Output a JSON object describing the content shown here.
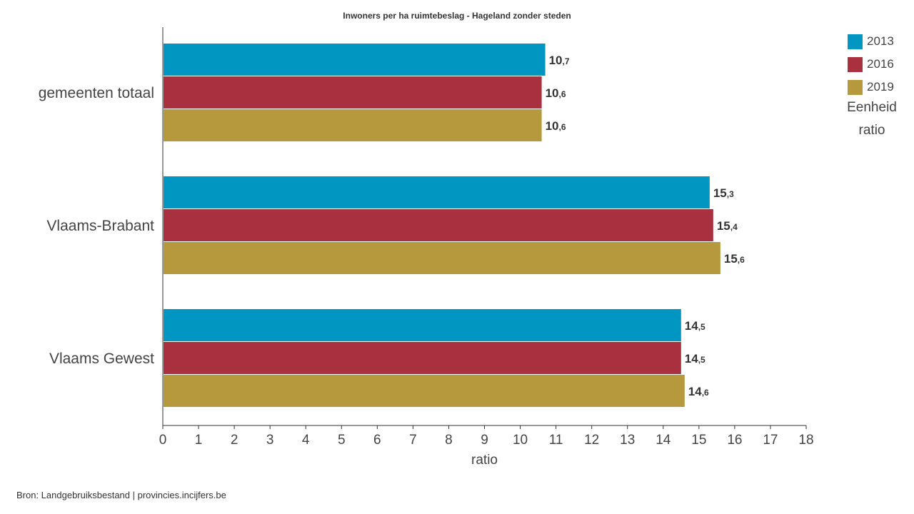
{
  "title": "Inwoners per ha ruimtebeslag - Hageland zonder steden",
  "legend": {
    "items": [
      {
        "label": "2013",
        "color": "#0096c1"
      },
      {
        "label": "2016",
        "color": "#a8303f"
      },
      {
        "label": "2019",
        "color": "#b5993c"
      }
    ],
    "unit_title": "Eenheid",
    "unit_value": "ratio"
  },
  "source": "Bron: Landgebruiksbestand | provincies.incijfers.be",
  "chart_data": {
    "type": "bar",
    "orientation": "horizontal",
    "categories": [
      "gemeenten totaal",
      "Vlaams-Brabant",
      "Vlaams Gewest"
    ],
    "series": [
      {
        "name": "2013",
        "values": [
          10.7,
          15.3,
          14.5
        ],
        "labels": [
          [
            "10",
            ",7"
          ],
          [
            "15",
            ",3"
          ],
          [
            "14",
            ",5"
          ]
        ]
      },
      {
        "name": "2016",
        "values": [
          10.6,
          15.4,
          14.5
        ],
        "labels": [
          [
            "10",
            ",6"
          ],
          [
            "15",
            ",4"
          ],
          [
            "14",
            ",5"
          ]
        ]
      },
      {
        "name": "2019",
        "values": [
          10.6,
          15.6,
          14.6
        ],
        "labels": [
          [
            "10",
            ",6"
          ],
          [
            "15",
            ",6"
          ],
          [
            "14",
            ",6"
          ]
        ]
      }
    ],
    "xlabel": "ratio",
    "ylabel": "",
    "xlim": [
      0,
      18
    ],
    "xticks": [
      "0",
      "1",
      "2",
      "3",
      "4",
      "5",
      "6",
      "7",
      "8",
      "9",
      "10",
      "11",
      "12",
      "13",
      "14",
      "15",
      "16",
      "17",
      "18"
    ],
    "grid": false,
    "legend_position": "right"
  }
}
